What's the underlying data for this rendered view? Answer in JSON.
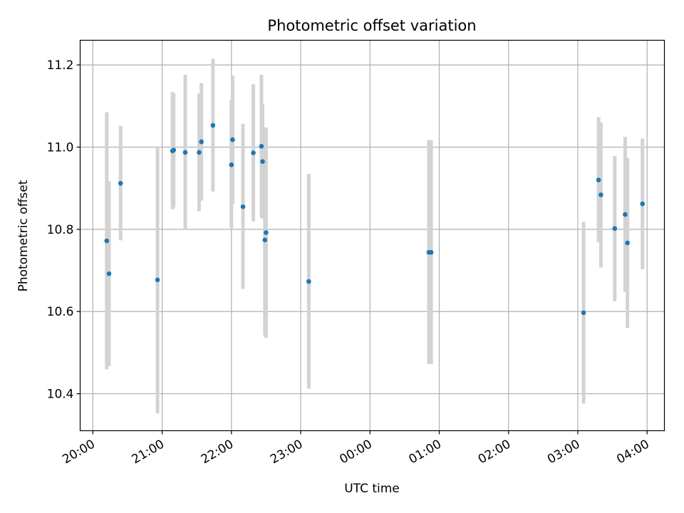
{
  "chart_data": {
    "type": "scatter",
    "title": "Photometric offset variation",
    "xlabel": "UTC time",
    "ylabel": "Photometric offset",
    "xlim": [
      "19:49",
      "04:15"
    ],
    "ylim": [
      10.31,
      11.26
    ],
    "x_ticks": [
      "20:00",
      "21:00",
      "22:00",
      "23:00",
      "00:00",
      "01:00",
      "02:00",
      "03:00",
      "04:00"
    ],
    "y_ticks": [
      10.4,
      10.6,
      10.8,
      11.0,
      11.2
    ],
    "grid": true,
    "marker_color": "#1f77b4",
    "errorbar_color": "#d3d3d3",
    "points": [
      {
        "x": "20:12",
        "y": 10.772,
        "lo": 10.459,
        "hi": 11.085
      },
      {
        "x": "20:14",
        "y": 10.692,
        "lo": 10.467,
        "hi": 10.917
      },
      {
        "x": "20:24",
        "y": 10.912,
        "lo": 10.773,
        "hi": 11.052
      },
      {
        "x": "20:56",
        "y": 10.677,
        "lo": 10.352,
        "hi": 11.002
      },
      {
        "x": "21:09",
        "y": 10.991,
        "lo": 10.849,
        "hi": 11.134
      },
      {
        "x": "21:10",
        "y": 10.993,
        "lo": 10.854,
        "hi": 11.131
      },
      {
        "x": "21:20",
        "y": 10.987,
        "lo": 10.798,
        "hi": 11.176
      },
      {
        "x": "21:32",
        "y": 10.987,
        "lo": 10.844,
        "hi": 11.13
      },
      {
        "x": "21:34",
        "y": 11.013,
        "lo": 10.87,
        "hi": 11.156
      },
      {
        "x": "21:44",
        "y": 11.053,
        "lo": 10.892,
        "hi": 11.215
      },
      {
        "x": "22:00",
        "y": 10.957,
        "lo": 10.8,
        "hi": 11.115
      },
      {
        "x": "22:01",
        "y": 11.018,
        "lo": 10.862,
        "hi": 11.174
      },
      {
        "x": "22:10",
        "y": 10.855,
        "lo": 10.655,
        "hi": 11.057
      },
      {
        "x": "22:19",
        "y": 10.986,
        "lo": 10.819,
        "hi": 11.153
      },
      {
        "x": "22:26",
        "y": 11.002,
        "lo": 10.829,
        "hi": 11.176
      },
      {
        "x": "22:27",
        "y": 10.965,
        "lo": 10.826,
        "hi": 11.104
      },
      {
        "x": "22:29",
        "y": 10.774,
        "lo": 10.542,
        "hi": 11.006
      },
      {
        "x": "22:30",
        "y": 10.792,
        "lo": 10.536,
        "hi": 11.048
      },
      {
        "x": "23:07",
        "y": 10.673,
        "lo": 10.412,
        "hi": 10.935
      },
      {
        "x": "00:51",
        "y": 10.744,
        "lo": 10.472,
        "hi": 11.017
      },
      {
        "x": "00:53",
        "y": 10.744,
        "lo": 10.472,
        "hi": 11.017
      },
      {
        "x": "03:05",
        "y": 10.597,
        "lo": 10.376,
        "hi": 10.818
      },
      {
        "x": "03:18",
        "y": 10.92,
        "lo": 10.768,
        "hi": 11.073
      },
      {
        "x": "03:20",
        "y": 10.884,
        "lo": 10.707,
        "hi": 11.06
      },
      {
        "x": "03:32",
        "y": 10.802,
        "lo": 10.625,
        "hi": 10.978
      },
      {
        "x": "03:41",
        "y": 10.836,
        "lo": 10.648,
        "hi": 11.025
      },
      {
        "x": "03:43",
        "y": 10.767,
        "lo": 10.56,
        "hi": 10.974
      },
      {
        "x": "03:56",
        "y": 10.862,
        "lo": 10.703,
        "hi": 11.021
      }
    ]
  }
}
